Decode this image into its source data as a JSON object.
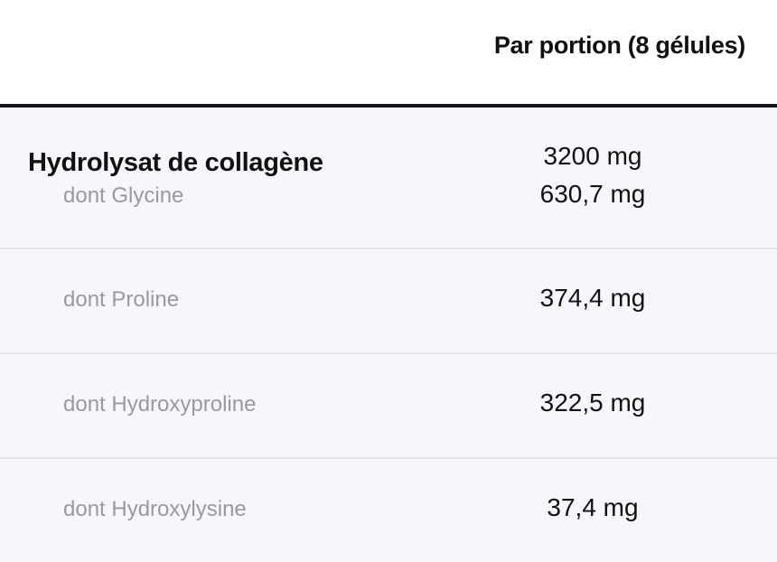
{
  "header": {
    "column": "Par portion (8 gélules)"
  },
  "main": {
    "name": "Hydrolysat de collagène",
    "value": "3200 mg"
  },
  "rows": [
    {
      "label": "dont Glycine",
      "value": "630,7 mg"
    },
    {
      "label": "dont Proline",
      "value": "374,4 mg"
    },
    {
      "label": "dont Hydroxyproline",
      "value": "322,5 mg"
    },
    {
      "label": "dont Hydroxylysine",
      "value": "37,4 mg"
    }
  ]
}
